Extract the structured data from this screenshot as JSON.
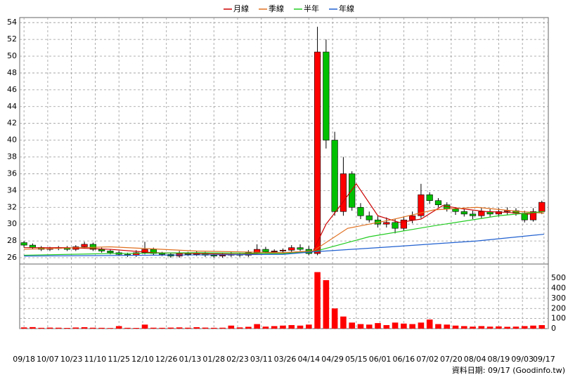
{
  "chart_data": {
    "type": "candlestick",
    "legend_position": "top",
    "grid": true,
    "up_color": "#ff0000",
    "down_color": "#00c000",
    "volume_color": "#ff0000",
    "xlim": [
      -2,
      243
    ],
    "xticks": [
      {
        "value": 0,
        "label": "09/18"
      },
      {
        "value": 11,
        "label": "10/07"
      },
      {
        "value": 22,
        "label": "10/23"
      },
      {
        "value": 33,
        "label": "11/10"
      },
      {
        "value": 44,
        "label": "11/25"
      },
      {
        "value": 55,
        "label": "12/10"
      },
      {
        "value": 66,
        "label": "12/26"
      },
      {
        "value": 77,
        "label": "01/13"
      },
      {
        "value": 88,
        "label": "01/28"
      },
      {
        "value": 99,
        "label": "02/23"
      },
      {
        "value": 110,
        "label": "03/11"
      },
      {
        "value": 121,
        "label": "03/26"
      },
      {
        "value": 132,
        "label": "04/14"
      },
      {
        "value": 143,
        "label": "04/29"
      },
      {
        "value": 154,
        "label": "05/15"
      },
      {
        "value": 165,
        "label": "06/01"
      },
      {
        "value": 176,
        "label": "06/16"
      },
      {
        "value": 187,
        "label": "07/02"
      },
      {
        "value": 198,
        "label": "07/20"
      },
      {
        "value": 209,
        "label": "08/04"
      },
      {
        "value": 220,
        "label": "08/19"
      },
      {
        "value": 231,
        "label": "09/03"
      },
      {
        "value": 241,
        "label": "09/17"
      }
    ],
    "ylim": [
      25.25,
      54.6
    ],
    "yticks": [
      26,
      28,
      30,
      32,
      34,
      36,
      38,
      40,
      42,
      44,
      46,
      48,
      50,
      52,
      54
    ],
    "y2lim": [
      0,
      640
    ],
    "y2ticks": [
      0,
      100,
      200,
      300,
      400,
      500
    ],
    "candles": {
      "x": [
        0,
        4,
        8,
        12,
        16,
        20,
        24,
        28,
        32,
        36,
        40,
        44,
        48,
        52,
        56,
        60,
        64,
        68,
        72,
        76,
        80,
        84,
        88,
        92,
        96,
        100,
        104,
        108,
        112,
        116,
        120,
        124,
        128,
        132,
        136,
        140,
        144,
        148,
        152,
        156,
        160,
        164,
        168,
        172,
        176,
        180,
        184,
        188,
        192,
        196,
        200,
        204,
        208,
        212,
        216,
        220,
        224,
        228,
        232,
        236,
        240
      ],
      "open": [
        27.8,
        27.5,
        27.2,
        27.0,
        27.1,
        27.2,
        27.0,
        27.3,
        27.6,
        27.0,
        26.8,
        26.6,
        26.4,
        26.3,
        26.6,
        27.0,
        26.5,
        26.4,
        26.2,
        26.5,
        26.4,
        26.5,
        26.3,
        26.2,
        26.3,
        26.4,
        26.3,
        26.6,
        27.0,
        26.7,
        26.8,
        26.9,
        27.2,
        27.0,
        26.5,
        50.5,
        40.0,
        31.5,
        36.0,
        32.0,
        31.0,
        30.5,
        30.0,
        30.2,
        29.5,
        30.5,
        31.0,
        33.5,
        32.8,
        32.3,
        31.8,
        31.5,
        31.2,
        31.0,
        31.5,
        31.2,
        31.5,
        31.6,
        31.3,
        30.5,
        31.5
      ],
      "high": [
        28.0,
        27.7,
        27.4,
        27.3,
        27.4,
        27.4,
        27.5,
        27.9,
        27.8,
        27.2,
        27.0,
        26.8,
        26.6,
        26.9,
        27.9,
        27.2,
        26.7,
        26.6,
        26.8,
        26.7,
        26.8,
        26.7,
        26.5,
        26.6,
        26.7,
        26.6,
        26.9,
        27.6,
        27.3,
        27.0,
        27.1,
        27.5,
        27.6,
        27.4,
        53.5,
        52.0,
        41.0,
        38.0,
        36.3,
        32.5,
        31.5,
        31.0,
        30.8,
        30.6,
        30.9,
        31.5,
        34.8,
        33.8,
        33.1,
        32.6,
        32.0,
        31.8,
        31.6,
        31.9,
        31.8,
        31.9,
        32.0,
        31.9,
        31.6,
        31.9,
        32.8
      ],
      "low": [
        27.2,
        27.0,
        26.8,
        26.8,
        26.9,
        26.8,
        26.8,
        27.1,
        26.8,
        26.6,
        26.4,
        26.2,
        26.1,
        26.1,
        26.4,
        26.3,
        26.2,
        26.0,
        26.0,
        26.2,
        26.2,
        26.1,
        26.0,
        26.0,
        26.1,
        26.1,
        26.1,
        26.4,
        26.5,
        26.5,
        26.6,
        26.7,
        26.8,
        26.3,
        26.3,
        39.0,
        31.0,
        31.0,
        31.6,
        30.6,
        30.2,
        29.6,
        29.6,
        28.9,
        29.2,
        30.1,
        30.7,
        32.4,
        32.0,
        31.5,
        31.1,
        30.9,
        30.6,
        30.7,
        30.9,
        30.9,
        31.1,
        31.0,
        30.2,
        30.3,
        31.2
      ],
      "close": [
        27.5,
        27.2,
        27.0,
        27.1,
        27.2,
        27.0,
        27.3,
        27.6,
        27.0,
        26.8,
        26.6,
        26.4,
        26.3,
        26.6,
        27.0,
        26.5,
        26.4,
        26.2,
        26.5,
        26.4,
        26.5,
        26.3,
        26.2,
        26.3,
        26.4,
        26.3,
        26.6,
        27.0,
        26.7,
        26.8,
        26.9,
        27.2,
        27.0,
        26.5,
        50.5,
        40.0,
        31.5,
        36.0,
        32.0,
        31.0,
        30.5,
        30.0,
        30.2,
        29.5,
        30.5,
        31.0,
        33.5,
        32.8,
        32.3,
        31.8,
        31.5,
        31.2,
        31.0,
        31.5,
        31.2,
        31.5,
        31.6,
        31.3,
        30.5,
        31.5,
        32.6
      ],
      "volume": [
        12,
        15,
        8,
        10,
        9,
        7,
        11,
        14,
        9,
        8,
        6,
        25,
        8,
        7,
        40,
        9,
        8,
        10,
        12,
        9,
        14,
        10,
        8,
        9,
        30,
        12,
        18,
        45,
        20,
        25,
        30,
        35,
        30,
        40,
        560,
        480,
        200,
        120,
        60,
        45,
        40,
        55,
        35,
        60,
        50,
        45,
        60,
        90,
        45,
        40,
        30,
        25,
        20,
        25,
        20,
        22,
        18,
        20,
        25,
        30,
        35
      ]
    },
    "series": [
      {
        "name": "月線",
        "color": "#cc0000",
        "x": [
          0,
          20,
          40,
          60,
          80,
          100,
          120,
          134,
          140,
          146,
          154,
          164,
          174,
          184,
          194,
          204,
          214,
          224,
          234,
          241
        ],
        "values": [
          27.2,
          27.2,
          27.0,
          26.6,
          26.5,
          26.4,
          26.6,
          26.8,
          30.0,
          32.0,
          34.8,
          31.0,
          30.2,
          30.6,
          32.2,
          31.8,
          31.5,
          31.4,
          31.2,
          31.5
        ]
      },
      {
        "name": "季線",
        "color": "#e07020",
        "x": [
          0,
          40,
          80,
          120,
          134,
          150,
          170,
          190,
          210,
          230,
          241
        ],
        "values": [
          27.0,
          27.3,
          26.8,
          26.6,
          26.8,
          29.5,
          30.5,
          31.7,
          32.0,
          31.5,
          31.3
        ]
      },
      {
        "name": "半年",
        "color": "#22cc22",
        "x": [
          0,
          40,
          80,
          120,
          134,
          160,
          190,
          220,
          241
        ],
        "values": [
          26.3,
          26.5,
          26.6,
          26.5,
          26.7,
          28.5,
          29.8,
          31.0,
          31.5
        ]
      },
      {
        "name": "年線",
        "color": "#2060d0",
        "x": [
          0,
          60,
          120,
          134,
          170,
          210,
          241
        ],
        "values": [
          26.2,
          26.3,
          26.4,
          26.7,
          27.3,
          28.0,
          28.8
        ]
      }
    ],
    "footer": "資料日期: 09/17 (Goodinfo.tw)"
  }
}
